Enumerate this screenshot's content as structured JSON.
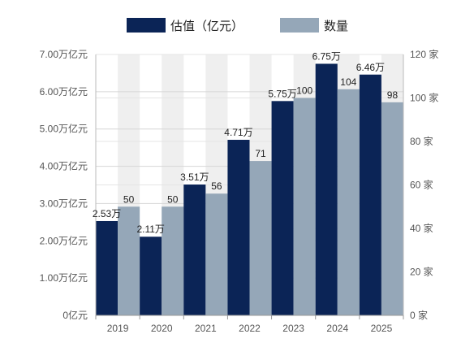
{
  "chart_data": {
    "type": "bar",
    "categories": [
      "2019",
      "2020",
      "2021",
      "2022",
      "2023",
      "2024",
      "2025"
    ],
    "series": [
      {
        "name": "估值（亿元）",
        "axis": "left",
        "color": "#0b2456",
        "values": [
          2.53,
          2.11,
          3.51,
          4.71,
          5.75,
          6.75,
          6.46
        ],
        "labels": [
          "2.53万",
          "2.11万",
          "3.51万",
          "4.71万",
          "5.75万",
          "6.75万",
          "6.46万"
        ]
      },
      {
        "name": "数量",
        "axis": "right",
        "color": "#95a7b8",
        "values": [
          50,
          50,
          56,
          71,
          100,
          104,
          98
        ],
        "labels": [
          "50",
          "50",
          "56",
          "71",
          "100",
          "104",
          "98"
        ]
      }
    ],
    "y_left": {
      "range": [
        0,
        7
      ],
      "ticks": [
        0,
        1,
        2,
        3,
        4,
        5,
        6,
        7
      ],
      "tick_labels": [
        "0亿元",
        "1.00万亿元",
        "2.00万亿元",
        "3.00万亿元",
        "4.00万亿元",
        "5.00万亿元",
        "6.00万亿元",
        "7.00万亿元"
      ]
    },
    "y_right": {
      "range": [
        0,
        120
      ],
      "ticks": [
        0,
        20,
        40,
        60,
        80,
        100,
        120
      ],
      "tick_labels": [
        "0 家",
        "20 家",
        "40 家",
        "60 家",
        "80 家",
        "100 家",
        "120 家"
      ]
    },
    "legend": "top",
    "grid": true,
    "alternating_column_bands": true,
    "band_color": "#efefef"
  }
}
